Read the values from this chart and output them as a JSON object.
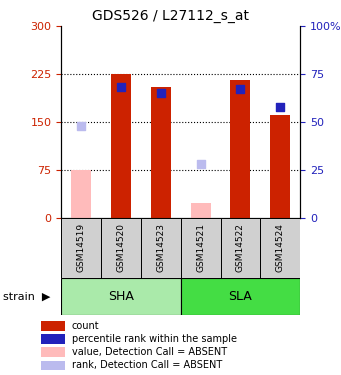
{
  "title": "GDS526 / L27112_s_at",
  "samples": [
    "GSM14519",
    "GSM14520",
    "GSM14523",
    "GSM14521",
    "GSM14522",
    "GSM14524"
  ],
  "red_bars": [
    null,
    225,
    205,
    null,
    215,
    160
  ],
  "blue_squares": [
    null,
    68,
    65,
    null,
    67,
    58
  ],
  "pink_bars": [
    75,
    null,
    null,
    22,
    null,
    null
  ],
  "lightblue_squares": [
    48,
    null,
    null,
    28,
    null,
    null
  ],
  "left_ylim": [
    0,
    300
  ],
  "right_ylim": [
    0,
    100
  ],
  "left_yticks": [
    0,
    75,
    150,
    225,
    300
  ],
  "right_yticks": [
    0,
    25,
    50,
    75,
    100
  ],
  "right_yticklabels": [
    "0",
    "25",
    "50",
    "75",
    "100%"
  ],
  "left_color": "#cc2200",
  "right_color": "#2222bb",
  "dotted_lines": [
    75,
    150,
    225
  ],
  "bar_width": 0.5,
  "sha_color": "#aaeaaa",
  "sla_color": "#44dd44",
  "legend_items": [
    {
      "color": "#cc2200",
      "label": "count"
    },
    {
      "color": "#2222bb",
      "label": "percentile rank within the sample"
    },
    {
      "color": "#ffbbbb",
      "label": "value, Detection Call = ABSENT"
    },
    {
      "color": "#bbbbee",
      "label": "rank, Detection Call = ABSENT"
    }
  ]
}
